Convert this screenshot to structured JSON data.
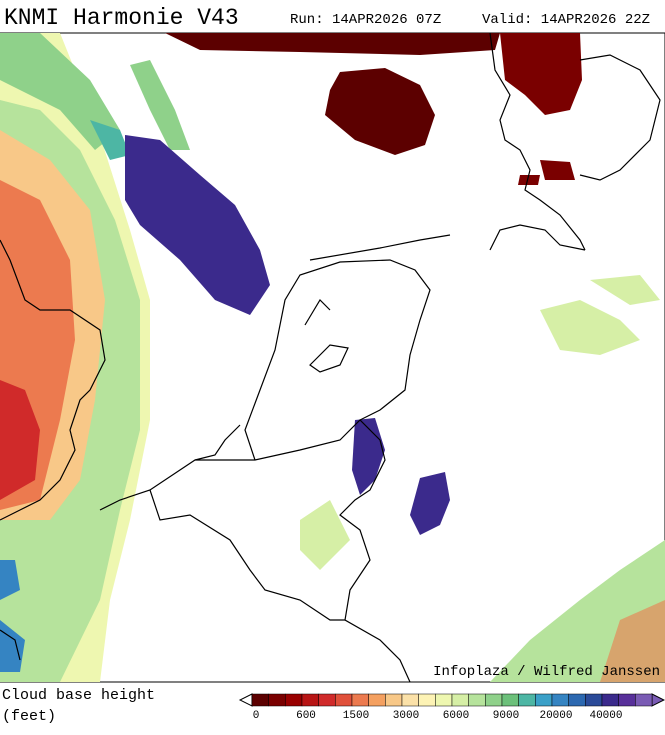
{
  "header": {
    "title": "KNMI Harmonie V43",
    "run": "Run: 14APR2026 07Z",
    "valid": "Valid: 14APR2026 22Z"
  },
  "credit": "Infoplaza / Wilfred Janssen",
  "legend": {
    "title": "Cloud base height",
    "unit": "(feet)",
    "colors": [
      "#5c0000",
      "#7a0000",
      "#990000",
      "#b81515",
      "#d02a2a",
      "#e0503a",
      "#ec7a4f",
      "#f4a060",
      "#f8c888",
      "#fbe1a8",
      "#fdf3b5",
      "#eef7b0",
      "#d6efa6",
      "#b6e39c",
      "#8fd18a",
      "#6cc07a",
      "#4db6a4",
      "#3aa0c8",
      "#3584c2",
      "#2c68b0",
      "#2a4a98",
      "#3b2a8c",
      "#58309a",
      "#7a5bb4"
    ],
    "labels": [
      0,
      600,
      1500,
      3000,
      6000,
      9000,
      20000,
      40000
    ]
  }
}
